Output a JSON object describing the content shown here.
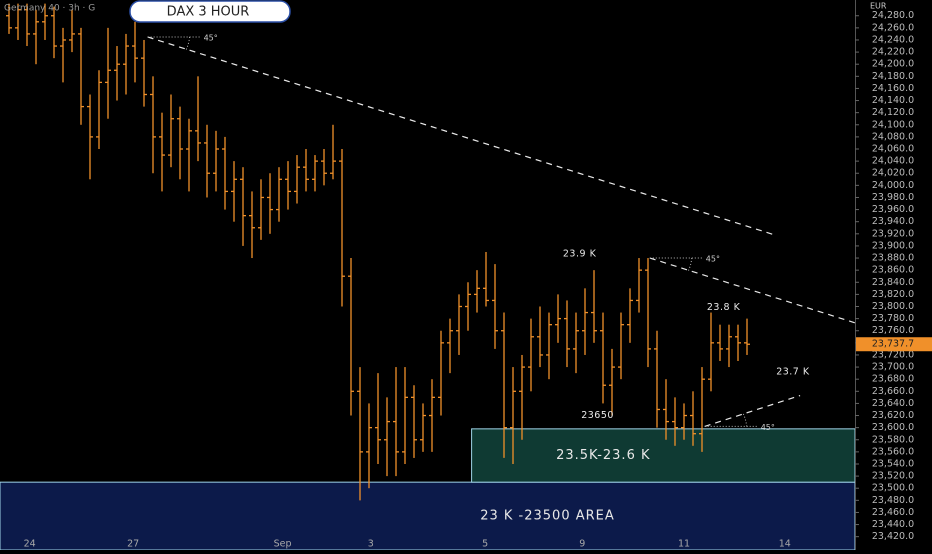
{
  "chart_data": {
    "type": "ohlc",
    "header": "Germany 40 · 3h · G",
    "title": "DAX  3 HOUR",
    "currency": "EUR",
    "color": "#f0902a",
    "x": [
      -3,
      -2,
      -1,
      0,
      1,
      2,
      3,
      4,
      5,
      6,
      7,
      8,
      9,
      10,
      11,
      12,
      13,
      14,
      15,
      16,
      17,
      18,
      19,
      20,
      21,
      22,
      23,
      24,
      25,
      26,
      27,
      28,
      29,
      30,
      31,
      32,
      33,
      34,
      35,
      36,
      37,
      38,
      39,
      40,
      41,
      42,
      43,
      44,
      45,
      46,
      47,
      48,
      49,
      50,
      51,
      52,
      53,
      54,
      55,
      56,
      57,
      58,
      59,
      60,
      61,
      62,
      63,
      64,
      65,
      66,
      67,
      68,
      69,
      70,
      71,
      72,
      73,
      74,
      75,
      76,
      77,
      78,
      79
    ],
    "open": [
      24280,
      24260,
      24290,
      24250,
      24270,
      24280,
      24230,
      24240,
      24250,
      24130,
      24080,
      24170,
      24190,
      24200,
      24230,
      24210,
      24150,
      24080,
      24050,
      24110,
      24060,
      24090,
      24070,
      24020,
      24060,
      23990,
      24010,
      23950,
      23930,
      23980,
      23960,
      24010,
      23990,
      24030,
      24010,
      24040,
      24020,
      24040,
      23850,
      23660,
      23560,
      23600,
      23580,
      23610,
      23560,
      23650,
      23580,
      23620,
      23650,
      23740,
      23760,
      23800,
      23820,
      23830,
      23810,
      23760,
      23600,
      23660,
      23700,
      23750,
      23720,
      23770,
      23780,
      23730,
      23760,
      23790,
      23760,
      23670,
      23700,
      23770,
      23810,
      23860,
      23730,
      23630,
      23610,
      23600,
      23620,
      23590,
      23680,
      23740,
      23730,
      23750,
      23740
    ],
    "high": [
      24300,
      24300,
      24300,
      24290,
      24300,
      24295,
      24260,
      24290,
      24260,
      24150,
      24190,
      24260,
      24230,
      24250,
      24270,
      24240,
      24180,
      24120,
      24150,
      24130,
      24110,
      24180,
      24100,
      24090,
      24080,
      24040,
      24030,
      23990,
      24010,
      24020,
      24030,
      24040,
      24050,
      24060,
      24050,
      24060,
      24100,
      24060,
      23880,
      23700,
      23640,
      23690,
      23650,
      23700,
      23700,
      23670,
      23640,
      23680,
      23760,
      23780,
      23820,
      23840,
      23860,
      23890,
      23870,
      23790,
      23700,
      23720,
      23780,
      23800,
      23790,
      23820,
      23810,
      23790,
      23830,
      23860,
      23790,
      23730,
      23790,
      23830,
      23880,
      23880,
      23760,
      23680,
      23650,
      23640,
      23660,
      23700,
      23790,
      23770,
      23770,
      23770,
      23780
    ],
    "low": [
      24250,
      24240,
      24230,
      24200,
      24240,
      24210,
      24170,
      24220,
      24100,
      24010,
      24060,
      24110,
      24140,
      24150,
      24170,
      24130,
      24020,
      23990,
      24030,
      24010,
      23990,
      24040,
      23980,
      23990,
      23960,
      23940,
      23900,
      23880,
      23910,
      23920,
      23940,
      23960,
      23970,
      23990,
      23990,
      24000,
      24010,
      23800,
      23620,
      23480,
      23500,
      23540,
      23520,
      23520,
      23540,
      23550,
      23560,
      23560,
      23620,
      23690,
      23720,
      23760,
      23790,
      23800,
      23730,
      23550,
      23540,
      23580,
      23660,
      23700,
      23680,
      23740,
      23700,
      23690,
      23720,
      23740,
      23640,
      23620,
      23680,
      23740,
      23790,
      23700,
      23600,
      23580,
      23570,
      23580,
      23570,
      23560,
      23660,
      23710,
      23700,
      23710,
      23720
    ],
    "close": [
      24260,
      24290,
      24250,
      24270,
      24280,
      24230,
      24240,
      24250,
      24130,
      24080,
      24170,
      24190,
      24200,
      24230,
      24210,
      24150,
      24080,
      24050,
      24110,
      24060,
      24090,
      24070,
      24020,
      24060,
      23990,
      24010,
      23950,
      23930,
      23980,
      23960,
      24010,
      23990,
      24030,
      24010,
      24040,
      24020,
      24040,
      23850,
      23660,
      23560,
      23600,
      23580,
      23610,
      23560,
      23650,
      23580,
      23620,
      23650,
      23740,
      23760,
      23800,
      23820,
      23830,
      23810,
      23760,
      23600,
      23660,
      23700,
      23750,
      23720,
      23770,
      23780,
      23730,
      23760,
      23790,
      23760,
      23670,
      23700,
      23770,
      23810,
      23860,
      23730,
      23630,
      23610,
      23600,
      23620,
      23590,
      23680,
      23740,
      23730,
      23750,
      23740,
      23737.7
    ],
    "last_price": {
      "value": 23737.7,
      "label": "23,737.7"
    },
    "xlim": [
      -4,
      91
    ],
    "ylim": [
      23398,
      24306
    ],
    "xticks": [
      {
        "value": -0.7,
        "label": "24"
      },
      {
        "value": 10.8,
        "label": "27"
      },
      {
        "value": 27.4,
        "label": "Sep"
      },
      {
        "value": 37.2,
        "label": "3"
      },
      {
        "value": 49.9,
        "label": "5"
      },
      {
        "value": 60.7,
        "label": "9"
      },
      {
        "value": 72,
        "label": "11"
      },
      {
        "value": 83.2,
        "label": "14"
      }
    ],
    "yticks": [
      {
        "value": 23420,
        "label": "23,420.0"
      },
      {
        "value": 23440,
        "label": "23,440.0"
      },
      {
        "value": 23460,
        "label": "23,460.0"
      },
      {
        "value": 23480,
        "label": "23,480.0"
      },
      {
        "value": 23500,
        "label": "23,500.0"
      },
      {
        "value": 23520,
        "label": "23,520.0"
      },
      {
        "value": 23540,
        "label": "23,540.0"
      },
      {
        "value": 23560,
        "label": "23,560.0"
      },
      {
        "value": 23580,
        "label": "23,580.0"
      },
      {
        "value": 23600,
        "label": "23,600.0"
      },
      {
        "value": 23620,
        "label": "23,620.0"
      },
      {
        "value": 23640,
        "label": "23,640.0"
      },
      {
        "value": 23660,
        "label": "23,660.0"
      },
      {
        "value": 23680,
        "label": "23,680.0"
      },
      {
        "value": 23700,
        "label": "23,700.0"
      },
      {
        "value": 23720,
        "label": "23,720.0"
      },
      {
        "value": 23740,
        "label": "23,740.0"
      },
      {
        "value": 23760,
        "label": "23,760.0"
      },
      {
        "value": 23780,
        "label": "23,780.0"
      },
      {
        "value": 23800,
        "label": "23,800.0"
      },
      {
        "value": 23820,
        "label": "23,820.0"
      },
      {
        "value": 23840,
        "label": "23,840.0"
      },
      {
        "value": 23860,
        "label": "23,860.0"
      },
      {
        "value": 23880,
        "label": "23,880.0"
      },
      {
        "value": 23900,
        "label": "23,900.0"
      },
      {
        "value": 23920,
        "label": "23,920.0"
      },
      {
        "value": 23940,
        "label": "23,940.0"
      },
      {
        "value": 23960,
        "label": "23,960.0"
      },
      {
        "value": 23980,
        "label": "23,980.0"
      },
      {
        "value": 24000,
        "label": "24,000.0"
      },
      {
        "value": 24020,
        "label": "24,020.0"
      },
      {
        "value": 24040,
        "label": "24,040.0"
      },
      {
        "value": 24060,
        "label": "24,060.0"
      },
      {
        "value": 24080,
        "label": "24,080.0"
      },
      {
        "value": 24100,
        "label": "24,100.0"
      },
      {
        "value": 24120,
        "label": "24,120.0"
      },
      {
        "value": 24140,
        "label": "24,140.0"
      },
      {
        "value": 24160,
        "label": "24,160.0"
      },
      {
        "value": 24180,
        "label": "24,180.0"
      },
      {
        "value": 24200,
        "label": "24,200.0"
      },
      {
        "value": 24220,
        "label": "24,220.0"
      },
      {
        "value": 24240,
        "label": "24,240.0"
      },
      {
        "value": 24260,
        "label": "24,260.0"
      },
      {
        "value": 24280,
        "label": "24,280.0"
      }
    ],
    "zones": [
      {
        "label": "23 K -23500 AREA",
        "color": "#0c1a4a",
        "x": [
          -4,
          91
        ],
        "y": [
          23398,
          23510
        ]
      },
      {
        "label": "23.5K-23.6 K",
        "color": "#0f3a33",
        "x": [
          48.4,
          91
        ],
        "y": [
          23510,
          23598
        ]
      }
    ],
    "trendlines": [
      {
        "x": [
          12.4,
          82.1
        ],
        "y": [
          24245,
          23918
        ],
        "angle_label": "45°"
      },
      {
        "x": [
          68.2,
          91
        ],
        "y": [
          23880,
          23773
        ],
        "angle_label": "45°"
      },
      {
        "x": [
          74.3,
          84.9
        ],
        "y": [
          23602,
          23653
        ],
        "angle_label": "45°"
      }
    ],
    "annotations": [
      {
        "text": "23.9 K",
        "x": 60.4,
        "y": 23887
      },
      {
        "text": "23.8 K",
        "x": 76.4,
        "y": 23798
      },
      {
        "text": "23.7 K",
        "x": 84.1,
        "y": 23692
      },
      {
        "text": "23650",
        "x": 62.4,
        "y": 23620
      }
    ]
  }
}
